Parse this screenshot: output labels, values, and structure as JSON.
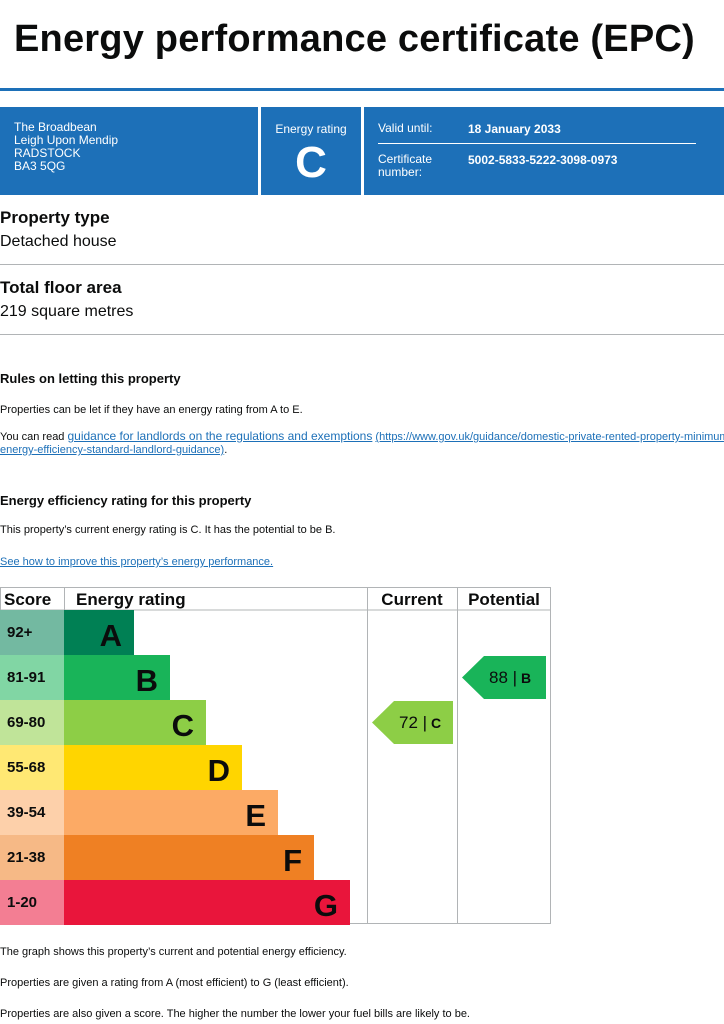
{
  "page": {
    "title": "Energy performance certificate (EPC)"
  },
  "banner": {
    "address": [
      "The Broadbean",
      "Leigh Upon Mendip",
      "RADSTOCK",
      "BA3 5QG"
    ],
    "energy_rating_label": "Energy rating",
    "energy_rating_value": "C",
    "valid_until_label": "Valid until:",
    "valid_until_value": "18 January 2033",
    "certificate_label_line1": "Certificate",
    "certificate_label_line2": "number:",
    "certificate_value": "5002-5833-5222-3098-0973"
  },
  "property_type": {
    "heading": "Property type",
    "value": "Detached house"
  },
  "floor_area": {
    "heading": "Total floor area",
    "value": "219 square metres"
  },
  "letting": {
    "heading": "Rules on letting this property",
    "text1": "Properties can be let if they have an energy rating from A to E.",
    "text2_prefix": "You can read ",
    "link_text": "guidance for landlords on the regulations and exemptions",
    "link_url_line1": "(https://www.gov.uk/guidance/domestic-private-rented-property-minimum-",
    "link_url_line2": "energy-efficiency-standard-landlord-guidance)",
    "text2_suffix": "."
  },
  "efficiency": {
    "heading": "Energy efficiency rating for this property",
    "text": "This property’s current energy rating is C. It has the potential to be B.",
    "improve_link": "See how to improve this property’s energy performance."
  },
  "chart_data": {
    "type": "bar",
    "headers": [
      "Score",
      "Energy rating",
      "Current",
      "Potential"
    ],
    "bands": [
      {
        "score": "92+",
        "letter": "A",
        "color": "#008054"
      },
      {
        "score": "81-91",
        "letter": "B",
        "color": "#19b459"
      },
      {
        "score": "69-80",
        "letter": "C",
        "color": "#8dce46"
      },
      {
        "score": "55-68",
        "letter": "D",
        "color": "#ffd500"
      },
      {
        "score": "39-54",
        "letter": "E",
        "color": "#fcaa65"
      },
      {
        "score": "21-38",
        "letter": "F",
        "color": "#ef8023"
      },
      {
        "score": "1-20",
        "letter": "G",
        "color": "#e9153b"
      }
    ],
    "current": {
      "score": 72,
      "letter": "C",
      "label_text": "72 | C"
    },
    "potential": {
      "score": 88,
      "letter": "B",
      "label_text": "88 | B"
    }
  },
  "notes": [
    "The graph shows this property’s current and potential energy efficiency.",
    "Properties are given a rating from A (most efficient) to G (least efficient).",
    "Properties are also given a score. The higher the number the lower your fuel bills are likely to be."
  ]
}
